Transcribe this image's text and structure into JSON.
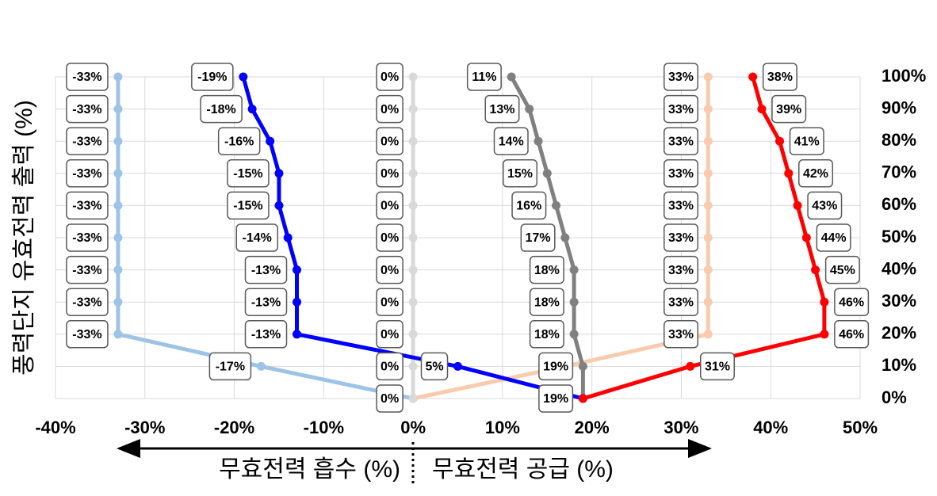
{
  "chart_data": {
    "type": "line",
    "y_title": "풍력단지 유효전력 출력 (%)",
    "x_left_title": "무효전력 흡수 (%)",
    "x_right_title": "무효전력 공급 (%)",
    "y": [
      0,
      10,
      20,
      30,
      40,
      50,
      60,
      70,
      80,
      90,
      100
    ],
    "series": [
      {
        "color": "#9dc3e6",
        "x": [
          0,
          -17,
          -33,
          -33,
          -33,
          -33,
          -33,
          -33,
          -33,
          -33,
          -33
        ],
        "value_labels": [
          "0%",
          "-17%",
          "-33%",
          "-33%",
          "-33%",
          "-33%",
          "-33%",
          "-33%",
          "-33%",
          "-33%",
          "-33%"
        ]
      },
      {
        "color": "#f8cbad",
        "x": [
          0,
          17,
          33,
          33,
          33,
          33,
          33,
          33,
          33,
          33,
          33
        ],
        "value_labels": [
          null,
          null,
          "33%",
          "33%",
          "33%",
          "33%",
          "33%",
          "33%",
          "33%",
          "33%",
          "33%"
        ]
      },
      {
        "color": "#d9d9d9",
        "x": [
          0,
          0,
          0,
          0,
          0,
          0,
          0,
          0,
          0,
          0,
          0
        ],
        "value_labels": [
          null,
          "0%",
          "0%",
          "0%",
          "0%",
          "0%",
          "0%",
          "0%",
          "0%",
          "0%",
          "0%"
        ]
      },
      {
        "color": "#808080",
        "x": [
          19,
          19,
          18,
          18,
          18,
          17,
          16,
          15,
          14,
          13,
          11
        ],
        "value_labels": [
          null,
          "19%",
          "18%",
          "18%",
          "18%",
          "17%",
          "16%",
          "15%",
          "14%",
          "13%",
          "11%"
        ]
      },
      {
        "color": "#0000ff",
        "x": [
          19,
          5,
          -13,
          -13,
          -13,
          -14,
          -15,
          -15,
          -16,
          -18,
          -19
        ],
        "value_labels": [
          "19%",
          "5%",
          "-13%",
          "-13%",
          "-13%",
          "-14%",
          "-15%",
          "-15%",
          "-16%",
          "-18%",
          "-19%"
        ]
      },
      {
        "color": "#ff0000",
        "label_position": "right",
        "x": [
          19,
          31,
          46,
          46,
          45,
          44,
          43,
          42,
          41,
          39,
          38
        ],
        "value_labels": [
          null,
          "31%",
          "46%",
          "46%",
          "45%",
          "44%",
          "43%",
          "42%",
          "41%",
          "39%",
          "38%"
        ]
      }
    ],
    "xlim": [
      -40,
      50
    ],
    "xticks": [
      {
        "value": -40,
        "label": "-40%"
      },
      {
        "value": -30,
        "label": "-30%"
      },
      {
        "value": -20,
        "label": "-20%"
      },
      {
        "value": -10,
        "label": "-10%"
      },
      {
        "value": 0,
        "label": "0%"
      },
      {
        "value": 10,
        "label": "10%"
      },
      {
        "value": 20,
        "label": "20%"
      },
      {
        "value": 30,
        "label": "30%"
      },
      {
        "value": 40,
        "label": "40%"
      },
      {
        "value": 50,
        "label": "50%"
      }
    ],
    "ylim": [
      0,
      100
    ],
    "yticks": [
      {
        "value": 0,
        "label": "0%"
      },
      {
        "value": 10,
        "label": "10%"
      },
      {
        "value": 20,
        "label": "20%"
      },
      {
        "value": 30,
        "label": "30%"
      },
      {
        "value": 40,
        "label": "40%"
      },
      {
        "value": 50,
        "label": "50%"
      },
      {
        "value": 60,
        "label": "60%"
      },
      {
        "value": 70,
        "label": "70%"
      },
      {
        "value": 80,
        "label": "80%"
      },
      {
        "value": 90,
        "label": "90%"
      },
      {
        "value": 100,
        "label": "100%"
      }
    ],
    "grid": true
  }
}
